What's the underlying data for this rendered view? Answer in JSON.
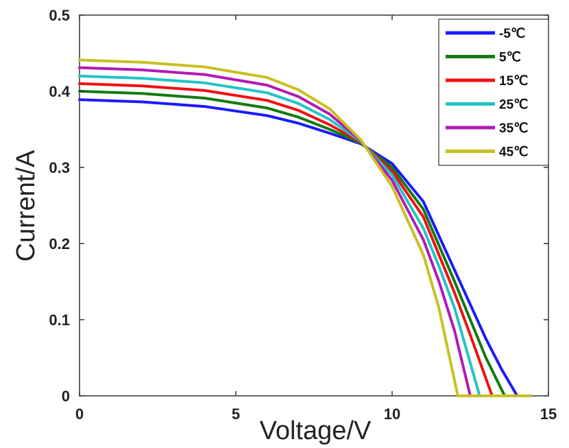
{
  "chart_data": {
    "type": "line",
    "xlabel": "Voltage/V",
    "ylabel": "Current/A",
    "xlim": [
      0,
      15
    ],
    "ylim": [
      0,
      0.5
    ],
    "xticks": [
      0,
      5,
      10,
      15
    ],
    "xtick_labels": [
      "0",
      "5",
      "10",
      "15"
    ],
    "yticks": [
      0,
      0.1,
      0.2,
      0.3,
      0.4,
      0.5
    ],
    "ytick_labels": [
      "0",
      "0.1",
      "0.2",
      "0.3",
      "0.4",
      "0.5"
    ],
    "grid": false,
    "legend_position": "top-right",
    "series": [
      {
        "name": "-5℃",
        "color": "#1a1aff",
        "x": [
          0,
          2,
          4,
          6,
          7,
          8,
          9,
          10,
          11,
          12,
          12.5,
          13,
          13.5,
          14.0,
          14.4
        ],
        "y": [
          0.389,
          0.386,
          0.38,
          0.368,
          0.358,
          0.345,
          0.331,
          0.305,
          0.255,
          0.165,
          0.12,
          0.075,
          0.035,
          0.0,
          0.0
        ]
      },
      {
        "name": "5℃",
        "color": "#127a12",
        "x": [
          0,
          2,
          4,
          6,
          7,
          8,
          9,
          10,
          11,
          12,
          12.5,
          13,
          13.6,
          14.4
        ],
        "y": [
          0.4,
          0.397,
          0.391,
          0.378,
          0.366,
          0.35,
          0.332,
          0.3,
          0.245,
          0.15,
          0.1,
          0.05,
          0.0,
          0.0
        ]
      },
      {
        "name": "15℃",
        "color": "#ee1111",
        "x": [
          0,
          2,
          4,
          6,
          7,
          8,
          9,
          10,
          11,
          12,
          12.5,
          13.2,
          14.4
        ],
        "y": [
          0.41,
          0.407,
          0.401,
          0.388,
          0.375,
          0.356,
          0.333,
          0.295,
          0.235,
          0.135,
          0.08,
          0.0,
          0.0
        ]
      },
      {
        "name": "25℃",
        "color": "#22c4c4",
        "x": [
          0,
          2,
          4,
          6,
          7,
          8,
          9,
          10,
          11,
          11.5,
          12,
          12.8,
          14.4
        ],
        "y": [
          0.42,
          0.417,
          0.411,
          0.398,
          0.384,
          0.363,
          0.334,
          0.29,
          0.22,
          0.17,
          0.115,
          0.0,
          0.0
        ]
      },
      {
        "name": "35℃",
        "color": "#b31ab3",
        "x": [
          0,
          2,
          4,
          6,
          7,
          8,
          9,
          10,
          11,
          11.5,
          12,
          12.5,
          14.4
        ],
        "y": [
          0.431,
          0.428,
          0.422,
          0.408,
          0.393,
          0.37,
          0.335,
          0.283,
          0.205,
          0.15,
          0.085,
          0.0,
          0.0
        ]
      },
      {
        "name": "45℃",
        "color": "#c8c020",
        "x": [
          0,
          2,
          4,
          6,
          7,
          8,
          9,
          10,
          11,
          11.5,
          12.1,
          14.4
        ],
        "y": [
          0.441,
          0.438,
          0.432,
          0.418,
          0.402,
          0.377,
          0.336,
          0.275,
          0.185,
          0.115,
          0.0,
          0.0
        ]
      }
    ]
  }
}
